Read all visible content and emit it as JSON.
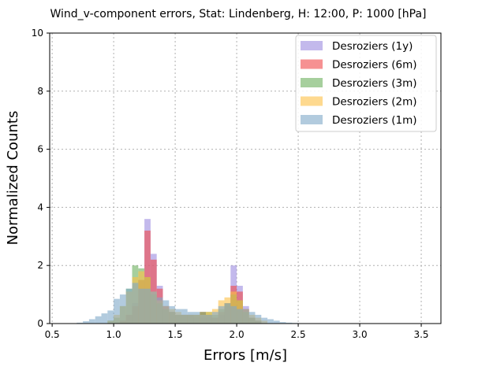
{
  "chart_data": {
    "type": "bar",
    "subtype": "overlaid-histogram",
    "title": "Wind_v-component errors, Stat: Lindenberg, H: 12:00, P: 1000 [hPa]",
    "xlabel": "Errors [m/s]",
    "ylabel": "Normalized Counts",
    "xlim": [
      0.48,
      3.66
    ],
    "ylim": [
      0,
      10
    ],
    "x_ticks": [
      "0.5",
      "1.0",
      "1.5",
      "2.0",
      "2.5",
      "3.0",
      "3.5"
    ],
    "y_ticks": [
      "0",
      "2",
      "4",
      "6",
      "8",
      "10"
    ],
    "grid": true,
    "legend_position": "top-right",
    "bin_width": 0.05,
    "bin_starts": [
      0.7,
      0.75,
      0.8,
      0.85,
      0.9,
      0.95,
      1.0,
      1.05,
      1.1,
      1.15,
      1.2,
      1.25,
      1.3,
      1.35,
      1.4,
      1.45,
      1.5,
      1.55,
      1.6,
      1.65,
      1.7,
      1.75,
      1.8,
      1.85,
      1.9,
      1.95,
      2.0,
      2.05,
      2.1,
      2.15,
      2.2,
      2.25,
      2.3,
      2.35,
      2.4,
      2.45,
      2.5,
      2.55,
      2.6,
      2.65,
      2.7
    ],
    "series": [
      {
        "name": "Desroziers (1y)",
        "color": "#9b8ae0",
        "opacity": 0.6,
        "values": [
          0,
          0,
          0,
          0,
          0,
          0,
          0,
          0.1,
          0.3,
          0.7,
          1.5,
          3.6,
          2.4,
          1.3,
          0.6,
          0.4,
          0.3,
          0.3,
          0.3,
          0.2,
          0.2,
          0.2,
          0.2,
          0.3,
          0.6,
          2.0,
          1.3,
          0.6,
          0.2,
          0.1,
          0,
          0,
          0,
          0,
          0,
          0,
          0,
          0,
          0,
          0,
          0
        ]
      },
      {
        "name": "Desroziers (6m)",
        "color": "#f0484a",
        "opacity": 0.6,
        "values": [
          0,
          0,
          0,
          0,
          0,
          0,
          0,
          0.1,
          0.3,
          0.6,
          1.5,
          3.2,
          2.2,
          1.2,
          0.6,
          0.4,
          0.3,
          0.3,
          0.3,
          0.3,
          0.4,
          0.3,
          0.2,
          0.4,
          0.7,
          1.3,
          1.1,
          0.5,
          0.2,
          0.1,
          0,
          0,
          0,
          0,
          0,
          0,
          0,
          0,
          0,
          0,
          0
        ]
      },
      {
        "name": "Desroziers (3m)",
        "color": "#6aaf5c",
        "opacity": 0.6,
        "values": [
          0,
          0,
          0,
          0,
          0,
          0.1,
          0.2,
          0.6,
          1.2,
          2.0,
          1.9,
          1.6,
          1.0,
          0.7,
          0.5,
          0.4,
          0.3,
          0.3,
          0.3,
          0.3,
          0.4,
          0.4,
          0.3,
          0.5,
          0.7,
          1.0,
          0.8,
          0.4,
          0.2,
          0.1,
          0,
          0,
          0,
          0,
          0,
          0,
          0,
          0,
          0,
          0,
          0
        ]
      },
      {
        "name": "Desroziers (2m)",
        "color": "#fec045",
        "opacity": 0.6,
        "values": [
          0,
          0,
          0,
          0,
          0,
          0.1,
          0.3,
          0.6,
          1.1,
          1.6,
          1.8,
          1.6,
          1.1,
          0.8,
          0.6,
          0.5,
          0.4,
          0.3,
          0.3,
          0.3,
          0.3,
          0.4,
          0.5,
          0.8,
          0.9,
          1.1,
          0.8,
          0.5,
          0.3,
          0.2,
          0.1,
          0,
          0,
          0,
          0,
          0,
          0,
          0,
          0,
          0,
          0
        ]
      },
      {
        "name": "Desroziers (1m)",
        "color": "#7fa8c8",
        "opacity": 0.6,
        "values": [
          0.03,
          0.08,
          0.15,
          0.25,
          0.35,
          0.45,
          0.85,
          1.0,
          1.2,
          1.4,
          1.2,
          1.2,
          1.1,
          0.9,
          0.8,
          0.6,
          0.5,
          0.5,
          0.4,
          0.4,
          0.3,
          0.3,
          0.4,
          0.6,
          0.7,
          0.6,
          0.5,
          0.5,
          0.4,
          0.3,
          0.2,
          0.15,
          0.1,
          0.05,
          0.03,
          0.02,
          0.01,
          0.01,
          0.01,
          0.01,
          0.01
        ]
      }
    ]
  }
}
